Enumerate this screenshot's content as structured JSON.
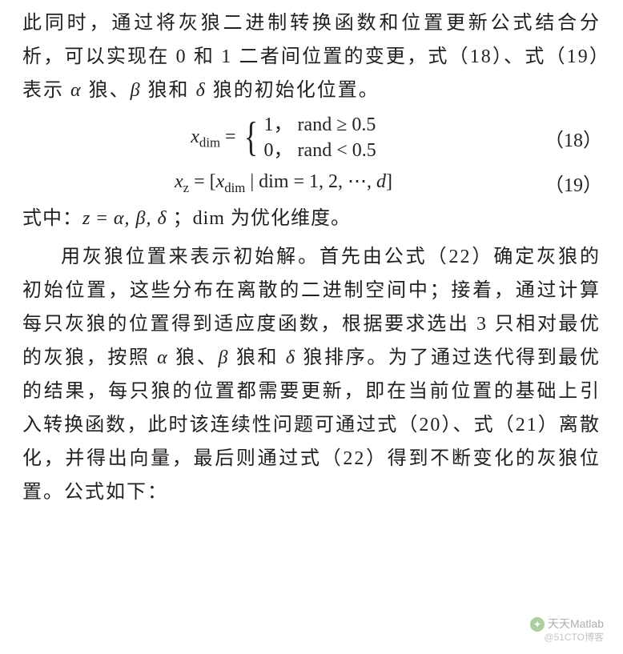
{
  "paragraphs": {
    "p1_prefix": "此同时，通过将灰狼二进制转换函数和位置更新公式结合分析，可以实现在 0 和 1 二者间位置的变更，式（18）、式（19）表示 ",
    "p1_mid1": " 狼、",
    "p1_mid2": " 狼和 ",
    "p1_suffix": " 狼的初始化位置。",
    "p2_a": "用灰狼位置来表示初始解。首先由公式（22）确定灰狼的初始位置，这些分布在离散的二进制空间中；接着，通过计算每只灰狼的位置得到适应度函数，根据要求选出 3 只相对最优的灰狼，按照 ",
    "p2_b": " 狼、",
    "p2_c": " 狼和 ",
    "p2_d": " 狼排序。为了通过迭代得到最优的结果，每只狼的位置都需要更新，即在当前位置的基础上引入转换函数，此时该连续性问题可通过式（20）、式（21）离散化，并得出向量，最后则通过式（22）得到不断变化的灰狼位置。公式如下："
  },
  "equations": {
    "eq18": {
      "lhs": "x",
      "lhs_sub": "dim",
      "case1": "1，  rand ≥ 0.5",
      "case2": "0，  rand < 0.5",
      "num": "（18）"
    },
    "eq19": {
      "full_a": "x",
      "sub_z": "z",
      "mid": " = [",
      "x2": "x",
      "sub_dim": "dim",
      "tail": " | dim = 1, 2, ⋯, ",
      "dvar": "d",
      "close": "]",
      "num": "（19）"
    }
  },
  "where": {
    "prefix": "式中：",
    "zvar": "z",
    "eq": " = ",
    "vals": "α, β, δ",
    "sep": " ；dim 为优化维度。"
  },
  "greek": {
    "alpha": "α",
    "beta": "β",
    "delta": "δ"
  },
  "watermark": {
    "line1": "天天Matlab",
    "line2": "@51CTO博客"
  },
  "colors": {
    "text": "#231f20",
    "bg": "#ffffff"
  },
  "fonts": {
    "body_size_pt": 18,
    "eq_size_pt": 18
  }
}
